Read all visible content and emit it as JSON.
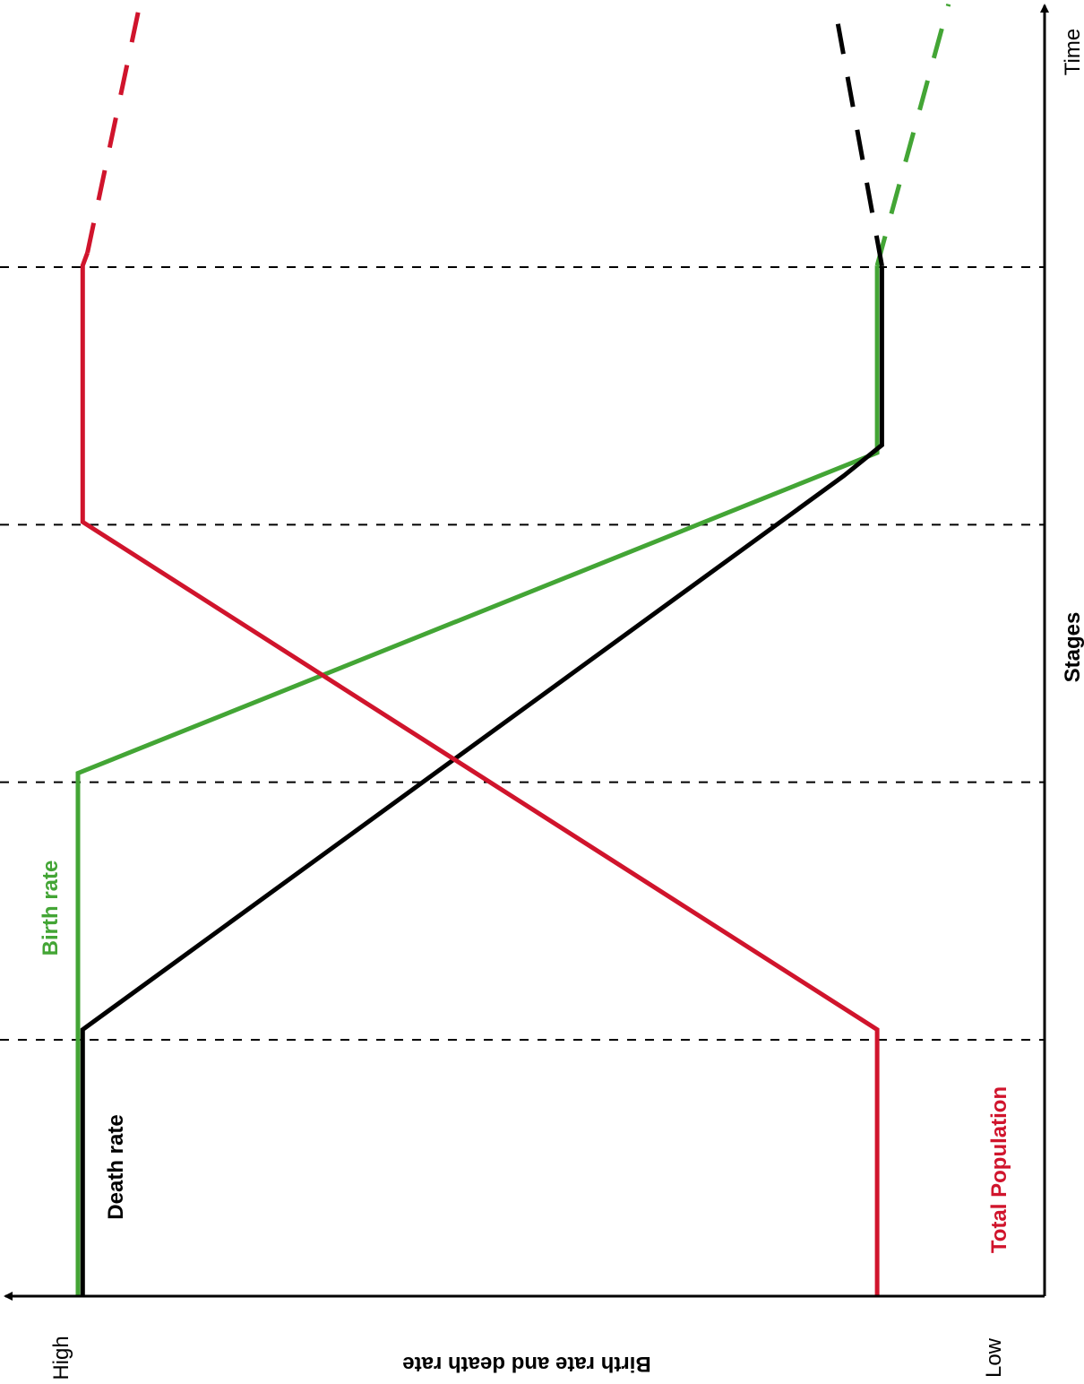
{
  "chart_data": {
    "type": "line",
    "orientation": "rotated-90",
    "xlabel": "Stages",
    "x_axis_end_label": "Time",
    "ylabel": "Birth rate and death rate",
    "y_low_label": "Low",
    "y_high_label": "High",
    "xlim": [
      0,
      4.0
    ],
    "ylim": [
      0,
      1
    ],
    "stage_boundaries": [
      1,
      2,
      3,
      4
    ],
    "grid": false,
    "series": [
      {
        "name": "Birth rate",
        "color": "#43a535",
        "points": [
          [
            0,
            0.935
          ],
          [
            2.04,
            0.935
          ],
          [
            3.29,
            0.095
          ],
          [
            4.02,
            0.095
          ]
        ],
        "projection": [
          [
            4.02,
            0.095
          ],
          [
            5.04,
            0.02
          ]
        ]
      },
      {
        "name": "Death rate",
        "color": "#000000",
        "points": [
          [
            0,
            0.93
          ],
          [
            1.04,
            0.93
          ],
          [
            3.2,
            0.13
          ],
          [
            3.32,
            0.09
          ],
          [
            4.02,
            0.09
          ]
        ],
        "projection": [
          [
            4.02,
            0.09
          ],
          [
            5.04,
            0.14
          ]
        ]
      },
      {
        "name": "Total Population",
        "color": "#d0142c",
        "points": [
          [
            0,
            0.095
          ],
          [
            1.04,
            0.095
          ],
          [
            3.02,
            0.93
          ],
          [
            4.02,
            0.93
          ],
          [
            4.07,
            0.925
          ]
        ],
        "projection": [
          [
            4.07,
            0.925
          ],
          [
            5.04,
            0.87
          ]
        ]
      }
    ]
  }
}
